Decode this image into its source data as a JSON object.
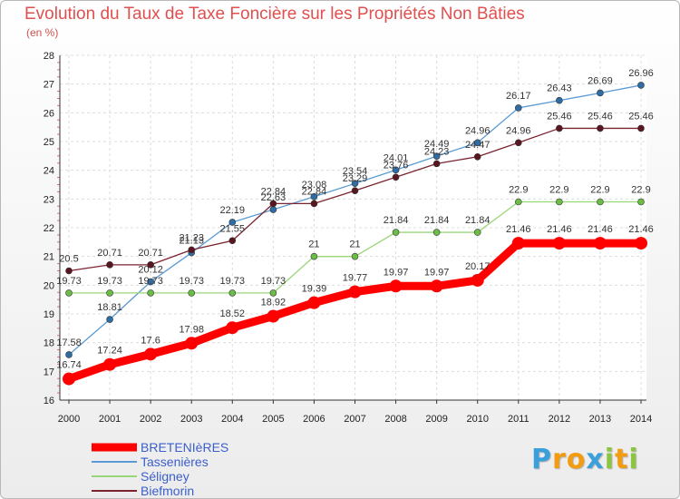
{
  "chart_data": {
    "type": "line",
    "title": "Evolution du Taux de Taxe Foncière sur les Propriétés Non Bâties",
    "ylabel": "(en %)",
    "xlabel": "",
    "ylim": [
      16,
      28
    ],
    "yticks": [
      "16",
      "17",
      "18",
      "19",
      "20",
      "21",
      "22",
      "23",
      "24",
      "25",
      "26",
      "27",
      "28"
    ],
    "categories": [
      "2000",
      "2001",
      "2002",
      "2003",
      "2004",
      "2005",
      "2006",
      "2007",
      "2008",
      "2009",
      "2010",
      "2011",
      "2012",
      "2013",
      "2014"
    ],
    "series": [
      {
        "name": "Tassenières",
        "color": "#5b9bd5",
        "marker": "#2e6da4",
        "width": 1.3,
        "values": [
          17.58,
          18.81,
          20.12,
          21.13,
          22.19,
          22.63,
          23.08,
          23.54,
          24.01,
          24.49,
          24.96,
          26.17,
          26.43,
          26.69,
          26.96
        ],
        "labels": [
          "17.58",
          "18.81",
          "20.12",
          "21.13",
          "22.19",
          "22.63",
          "23.08",
          "23.54",
          "24.01",
          "24.49",
          "24.96",
          "26.17",
          "26.43",
          "26.69",
          "26.96"
        ]
      },
      {
        "name": "Séligney",
        "color": "#99d67a",
        "marker": "#6bbd45",
        "width": 1.3,
        "values": [
          19.73,
          19.73,
          19.73,
          19.73,
          19.73,
          19.73,
          21,
          21,
          21.84,
          21.84,
          21.84,
          22.9,
          22.9,
          22.9,
          22.9
        ],
        "labels": [
          "19.73",
          "19.73",
          "19.73",
          "19.73",
          "19.73",
          "19.73",
          "21",
          "21",
          "21.84",
          "21.84",
          "21.84",
          "22.9",
          "22.9",
          "22.9",
          "22.9"
        ]
      },
      {
        "name": "Biefmorin",
        "color": "#7b2430",
        "marker": "#5a1620",
        "width": 1.3,
        "values": [
          20.5,
          20.71,
          20.71,
          21.23,
          21.55,
          22.84,
          22.84,
          23.29,
          23.76,
          24.23,
          24.47,
          24.96,
          25.46,
          25.46,
          25.46
        ],
        "labels": [
          "20.5",
          "20.71",
          "20.71",
          "21.23",
          "21.55",
          "22.84",
          "22.84",
          "23.29",
          "23.76",
          "24.23",
          "24.47",
          "24.96",
          "25.46",
          "25.46",
          "25.46"
        ]
      },
      {
        "name": "BRETENIèRES",
        "color": "#ff0000",
        "marker": "#ff0000",
        "width": 9,
        "values": [
          16.74,
          17.24,
          17.6,
          17.98,
          18.52,
          18.92,
          19.39,
          19.77,
          19.97,
          19.97,
          20.17,
          21.46,
          21.46,
          21.46,
          21.46
        ],
        "labels": [
          "16.74",
          "17.24",
          "17.6",
          "17.98",
          "18.52",
          "18.92",
          "19.39",
          "19.77",
          "19.97",
          "19.97",
          "20.17",
          "21.46",
          "21.46",
          "21.46",
          "21.46"
        ]
      }
    ],
    "legend": [
      "BRETENIèRES",
      "Tassenières",
      "Séligney",
      "Biefmorin"
    ]
  },
  "logo": {
    "letters": [
      "P",
      "r",
      "o",
      "x",
      "i",
      "t",
      "i"
    ],
    "colors": [
      "#3aa0dc",
      "#f39c12",
      "#f39c12",
      "#3aa0dc",
      "#8cc63f",
      "#f39c12",
      "#8cc63f"
    ]
  }
}
